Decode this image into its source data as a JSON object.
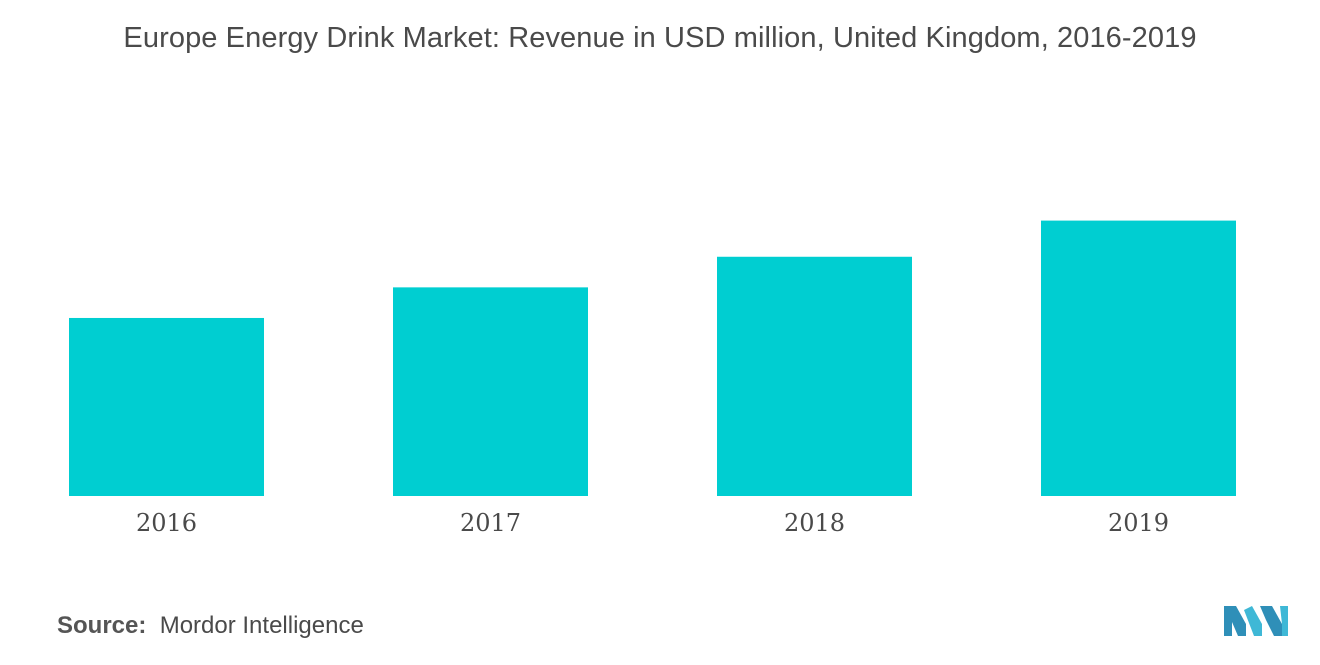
{
  "title": "Europe Energy Drink Market: Revenue in USD million, United Kingdom, 2016-2019",
  "source": {
    "label": "Source:",
    "value": "Mordor Intelligence"
  },
  "logo": {
    "icon": "mordor-intelligence-logo-icon",
    "color": "#3aa6c9"
  },
  "colors": {
    "bar": "#00ced1",
    "text": "#4a4a4a"
  },
  "chart_data": {
    "type": "bar",
    "title": "Europe Energy Drink Market: Revenue in USD million, United Kingdom, 2016-2019",
    "categories": [
      "2016",
      "2017",
      "2018",
      "2019"
    ],
    "values": [
      64,
      75,
      86,
      99
    ],
    "ylim": [
      0,
      110
    ],
    "grid": false,
    "xlabel": "",
    "ylabel": ""
  }
}
